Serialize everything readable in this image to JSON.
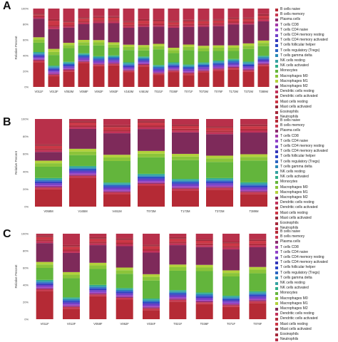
{
  "palette": [
    "#b52a35",
    "#c83a52",
    "#8c2c6e",
    "#a43aa8",
    "#9142c8",
    "#7040c8",
    "#3436b8",
    "#2c47c6",
    "#2c64c2",
    "#2a8ab6",
    "#35a2a2",
    "#2fae8a",
    "#63b53c",
    "#8bc43a",
    "#b2d13c",
    "#7e2a5a",
    "#c2325a",
    "#b02e3e",
    "#cc3645",
    "#9a2a3a",
    "#a4283a",
    "#b8304a"
  ],
  "chart_data": [
    {
      "panel": "A",
      "type": "bar",
      "stacked": true,
      "ylabel": "Relative Percent",
      "yticks": [
        "0%",
        "20%",
        "40%",
        "60%",
        "80%",
        "100%"
      ],
      "ylim": [
        0,
        100
      ],
      "categories": [
        "V011F",
        "V013F",
        "V053M",
        "V058F",
        "V062F",
        "V063F",
        "V163M",
        "V461M",
        "T021F",
        "T036F",
        "T071F",
        "T073M",
        "T076F",
        "T173M",
        "T372M",
        "T389M"
      ],
      "series": [
        {
          "name": "B cells naive",
          "values": [
            32,
            14,
            20,
            30,
            27,
            28,
            19,
            27,
            15,
            19,
            15,
            18,
            20,
            22,
            19,
            26
          ]
        },
        {
          "name": "B cells memory",
          "values": [
            2,
            2,
            2,
            2,
            2,
            2,
            2,
            2,
            2,
            2,
            2,
            2,
            2,
            2,
            2,
            2
          ]
        },
        {
          "name": "Plasma cells",
          "values": [
            1,
            1,
            1,
            1,
            1,
            1,
            1,
            1,
            1,
            1,
            1,
            1,
            1,
            1,
            1,
            1
          ]
        },
        {
          "name": "T cells CD8",
          "values": [
            1,
            2,
            1,
            1,
            1,
            1,
            1,
            1,
            1,
            1,
            1,
            1,
            1,
            1,
            1,
            1
          ]
        },
        {
          "name": "T cells CD4 naive",
          "values": [
            1,
            1,
            1,
            1,
            1,
            1,
            1,
            1,
            1,
            1,
            1,
            1,
            1,
            1,
            1,
            1
          ]
        },
        {
          "name": "T cells CD4 memory resting",
          "values": [
            2,
            2,
            2,
            2,
            2,
            2,
            2,
            2,
            2,
            2,
            2,
            2,
            2,
            2,
            2,
            2
          ]
        },
        {
          "name": "T cells CD4 memory activated",
          "values": [
            1,
            1,
            1,
            1,
            1,
            1,
            1,
            1,
            1,
            1,
            1,
            1,
            1,
            1,
            1,
            1
          ]
        },
        {
          "name": "T cells follicular helper",
          "values": [
            1,
            1,
            1,
            1,
            1,
            1,
            1,
            1,
            1,
            1,
            1,
            1,
            1,
            1,
            1,
            1
          ]
        },
        {
          "name": "T cells regulatory (Tregs)",
          "values": [
            1,
            1,
            1,
            1,
            1,
            1,
            1,
            1,
            1,
            1,
            1,
            1,
            1,
            1,
            1,
            1
          ]
        },
        {
          "name": "T cells gamma delta",
          "values": [
            1,
            1,
            1,
            1,
            1,
            1,
            1,
            1,
            1,
            1,
            1,
            1,
            1,
            1,
            1,
            1
          ]
        },
        {
          "name": "NK cells resting",
          "values": [
            1,
            1,
            1,
            1,
            1,
            1,
            1,
            1,
            1,
            1,
            1,
            1,
            1,
            1,
            1,
            1
          ]
        },
        {
          "name": "NK cells activated",
          "values": [
            1,
            1,
            1,
            1,
            1,
            1,
            1,
            1,
            1,
            1,
            1,
            1,
            1,
            1,
            1,
            1
          ]
        },
        {
          "name": "Monocytes",
          "values": [
            12,
            14,
            18,
            10,
            14,
            10,
            16,
            8,
            20,
            12,
            18,
            14,
            12,
            10,
            16,
            12
          ]
        },
        {
          "name": "Macrophages M0",
          "values": [
            4,
            4,
            4,
            4,
            4,
            4,
            4,
            4,
            4,
            4,
            4,
            4,
            4,
            4,
            4,
            4
          ]
        },
        {
          "name": "Macrophages M1",
          "values": [
            3,
            4,
            3,
            3,
            3,
            3,
            3,
            3,
            3,
            3,
            3,
            3,
            3,
            3,
            3,
            3
          ]
        },
        {
          "name": "Macrophages M2",
          "values": [
            24,
            26,
            20,
            20,
            22,
            25,
            22,
            24,
            22,
            26,
            22,
            24,
            24,
            26,
            24,
            24
          ]
        },
        {
          "name": "Dendritic cells resting",
          "values": [
            2,
            3,
            2,
            2,
            2,
            2,
            2,
            2,
            2,
            2,
            2,
            2,
            2,
            2,
            2,
            2
          ]
        },
        {
          "name": "Dendritic cells activated",
          "values": [
            2,
            2,
            2,
            2,
            2,
            2,
            2,
            2,
            2,
            2,
            2,
            2,
            2,
            2,
            2,
            2
          ]
        },
        {
          "name": "Mast cells resting",
          "values": [
            1,
            6,
            3,
            3,
            3,
            3,
            3,
            4,
            3,
            3,
            3,
            3,
            3,
            3,
            3,
            3
          ]
        },
        {
          "name": "Mast cells activated",
          "values": [
            1,
            1,
            1,
            1,
            1,
            1,
            1,
            1,
            1,
            1,
            1,
            1,
            1,
            1,
            1,
            1
          ]
        },
        {
          "name": "Eosinophils",
          "values": [
            1,
            1,
            1,
            1,
            1,
            1,
            1,
            1,
            1,
            1,
            1,
            1,
            1,
            1,
            1,
            1
          ]
        },
        {
          "name": "Neutrophils",
          "values": [
            6,
            14,
            16,
            11,
            10,
            10,
            16,
            14,
            14,
            16,
            14,
            14,
            13,
            11,
            11,
            7
          ]
        }
      ]
    },
    {
      "panel": "B",
      "type": "bar",
      "stacked": true,
      "ylabel": "Relative Percent",
      "yticks": [
        "0%",
        "20%",
        "40%",
        "60%",
        "80%",
        "100%"
      ],
      "ylim": [
        0,
        100
      ],
      "categories": [
        "V058M",
        "V165M",
        "V461M",
        "T073M",
        "T173M",
        "T372M",
        "T389M"
      ],
      "series": [
        {
          "name": "B cells naive",
          "values": [
            20,
            32,
            14,
            23,
            18,
            19,
            14
          ]
        },
        {
          "name": "B cells memory",
          "values": [
            2,
            2,
            2,
            2,
            2,
            2,
            2
          ]
        },
        {
          "name": "Plasma cells",
          "values": [
            1,
            1,
            1,
            1,
            1,
            1,
            1
          ]
        },
        {
          "name": "T cells CD8",
          "values": [
            1,
            1,
            1,
            1,
            1,
            1,
            1
          ]
        },
        {
          "name": "T cells CD4 naive",
          "values": [
            1,
            1,
            1,
            1,
            1,
            1,
            1
          ]
        },
        {
          "name": "T cells CD4 memory resting",
          "values": [
            2,
            2,
            2,
            2,
            2,
            2,
            2
          ]
        },
        {
          "name": "T cells CD4 memory activated",
          "values": [
            1,
            1,
            1,
            1,
            1,
            1,
            1
          ]
        },
        {
          "name": "T cells follicular helper",
          "values": [
            1,
            1,
            1,
            1,
            1,
            1,
            1
          ]
        },
        {
          "name": "T cells regulatory (Tregs)",
          "values": [
            1,
            1,
            1,
            1,
            1,
            1,
            1
          ]
        },
        {
          "name": "T cells gamma delta",
          "values": [
            1,
            1,
            1,
            1,
            1,
            1,
            1
          ]
        },
        {
          "name": "NK cells resting",
          "values": [
            1,
            1,
            1,
            1,
            1,
            1,
            1
          ]
        },
        {
          "name": "NK cells activated",
          "values": [
            1,
            1,
            1,
            1,
            1,
            1,
            1
          ]
        },
        {
          "name": "Monocytes",
          "values": [
            13,
            12,
            24,
            18,
            21,
            18,
            24
          ]
        },
        {
          "name": "Macrophages M0",
          "values": [
            4,
            4,
            4,
            4,
            4,
            4,
            4
          ]
        },
        {
          "name": "Macrophages M1",
          "values": [
            3,
            3,
            3,
            3,
            3,
            3,
            3
          ]
        },
        {
          "name": "Macrophages M2",
          "values": [
            10,
            22,
            24,
            24,
            24,
            24,
            24
          ]
        },
        {
          "name": "Dendritic cells resting",
          "values": [
            2,
            2,
            2,
            2,
            2,
            2,
            2
          ]
        },
        {
          "name": "Dendritic cells activated",
          "values": [
            2,
            2,
            2,
            2,
            2,
            2,
            2
          ]
        },
        {
          "name": "Mast cells resting",
          "values": [
            3,
            3,
            3,
            3,
            3,
            3,
            3
          ]
        },
        {
          "name": "Mast cells activated",
          "values": [
            1,
            1,
            1,
            1,
            1,
            1,
            1
          ]
        },
        {
          "name": "Eosinophils",
          "values": [
            1,
            1,
            1,
            1,
            1,
            1,
            1
          ]
        },
        {
          "name": "Neutrophils",
          "values": [
            29,
            2,
            7,
            2,
            6,
            8,
            6
          ]
        }
      ]
    },
    {
      "panel": "C",
      "type": "bar",
      "stacked": true,
      "ylabel": "Relative Percent",
      "yticks": [
        "0%",
        "20%",
        "40%",
        "60%",
        "80%",
        "100%"
      ],
      "ylim": [
        0,
        100
      ],
      "categories": [
        "V011F",
        "V013F",
        "V058F",
        "V062F",
        "V034F",
        "T021F",
        "T036F",
        "T071F",
        "T076F"
      ],
      "series": [
        {
          "name": "B cells naive",
          "values": [
            33,
            12,
            26,
            22,
            10,
            20,
            17,
            14,
            18
          ]
        },
        {
          "name": "B cells memory",
          "values": [
            2,
            2,
            2,
            2,
            2,
            2,
            2,
            2,
            2
          ]
        },
        {
          "name": "Plasma cells",
          "values": [
            1,
            1,
            1,
            1,
            1,
            1,
            1,
            1,
            1
          ]
        },
        {
          "name": "T cells CD8",
          "values": [
            1,
            1,
            1,
            1,
            1,
            1,
            1,
            1,
            1
          ]
        },
        {
          "name": "T cells CD4 naive",
          "values": [
            1,
            1,
            1,
            1,
            1,
            1,
            1,
            1,
            1
          ]
        },
        {
          "name": "T cells CD4 memory resting",
          "values": [
            2,
            2,
            2,
            2,
            2,
            2,
            2,
            2,
            2
          ]
        },
        {
          "name": "T cells CD4 memory activated",
          "values": [
            1,
            1,
            1,
            1,
            1,
            1,
            1,
            1,
            1
          ]
        },
        {
          "name": "T cells follicular helper",
          "values": [
            1,
            1,
            1,
            1,
            1,
            1,
            1,
            1,
            1
          ]
        },
        {
          "name": "T cells regulatory (Tregs)",
          "values": [
            1,
            1,
            1,
            1,
            1,
            1,
            1,
            1,
            1
          ]
        },
        {
          "name": "T cells gamma delta",
          "values": [
            1,
            1,
            1,
            1,
            1,
            1,
            1,
            1,
            1
          ]
        },
        {
          "name": "NK cells resting",
          "values": [
            1,
            1,
            1,
            1,
            1,
            1,
            1,
            1,
            1
          ]
        },
        {
          "name": "NK cells activated",
          "values": [
            1,
            1,
            1,
            1,
            1,
            1,
            1,
            1,
            1
          ]
        },
        {
          "name": "Monocytes",
          "values": [
            14,
            22,
            18,
            16,
            20,
            22,
            24,
            22,
            20
          ]
        },
        {
          "name": "Macrophages M0",
          "values": [
            4,
            4,
            4,
            4,
            4,
            4,
            4,
            4,
            4
          ]
        },
        {
          "name": "Macrophages M1",
          "values": [
            3,
            3,
            3,
            3,
            3,
            3,
            3,
            3,
            3
          ]
        },
        {
          "name": "Macrophages M2",
          "values": [
            22,
            22,
            20,
            24,
            24,
            22,
            20,
            24,
            22
          ]
        },
        {
          "name": "Dendritic cells resting",
          "values": [
            2,
            2,
            2,
            2,
            2,
            2,
            2,
            2,
            2
          ]
        },
        {
          "name": "Dendritic cells activated",
          "values": [
            2,
            2,
            2,
            2,
            2,
            2,
            2,
            2,
            2
          ]
        },
        {
          "name": "Mast cells resting",
          "values": [
            3,
            3,
            3,
            3,
            3,
            3,
            3,
            3,
            3
          ]
        },
        {
          "name": "Mast cells activated",
          "values": [
            1,
            1,
            1,
            1,
            1,
            1,
            1,
            1,
            1
          ]
        },
        {
          "name": "Eosinophils",
          "values": [
            1,
            1,
            1,
            1,
            1,
            1,
            1,
            1,
            1
          ]
        },
        {
          "name": "Neutrophils",
          "values": [
            2,
            13,
            4,
            5,
            12,
            4,
            6,
            9,
            6
          ]
        }
      ]
    }
  ]
}
